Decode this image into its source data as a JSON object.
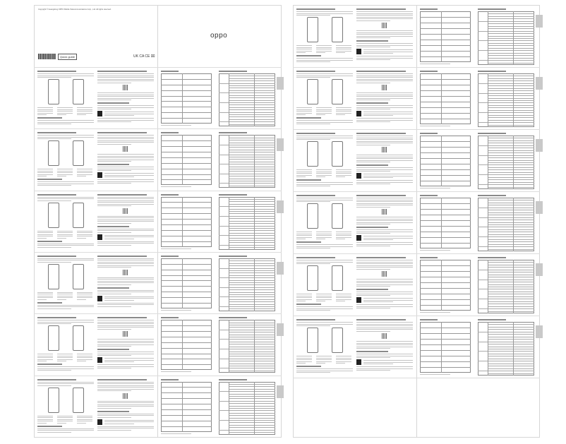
{
  "cover": {
    "copyright": "Copyright © Guangdong OPPO Mobile Telecommunications Corp., Ltd. All rights reserved.",
    "quick_guide_label": "Quick guide",
    "brand_logo": "oppo",
    "certification_marks": "UK CA CE ⌧"
  },
  "colors": {
    "border": "#d6d6d6",
    "text_line": "#c4c4c4",
    "tab": "#c9c9c9"
  }
}
